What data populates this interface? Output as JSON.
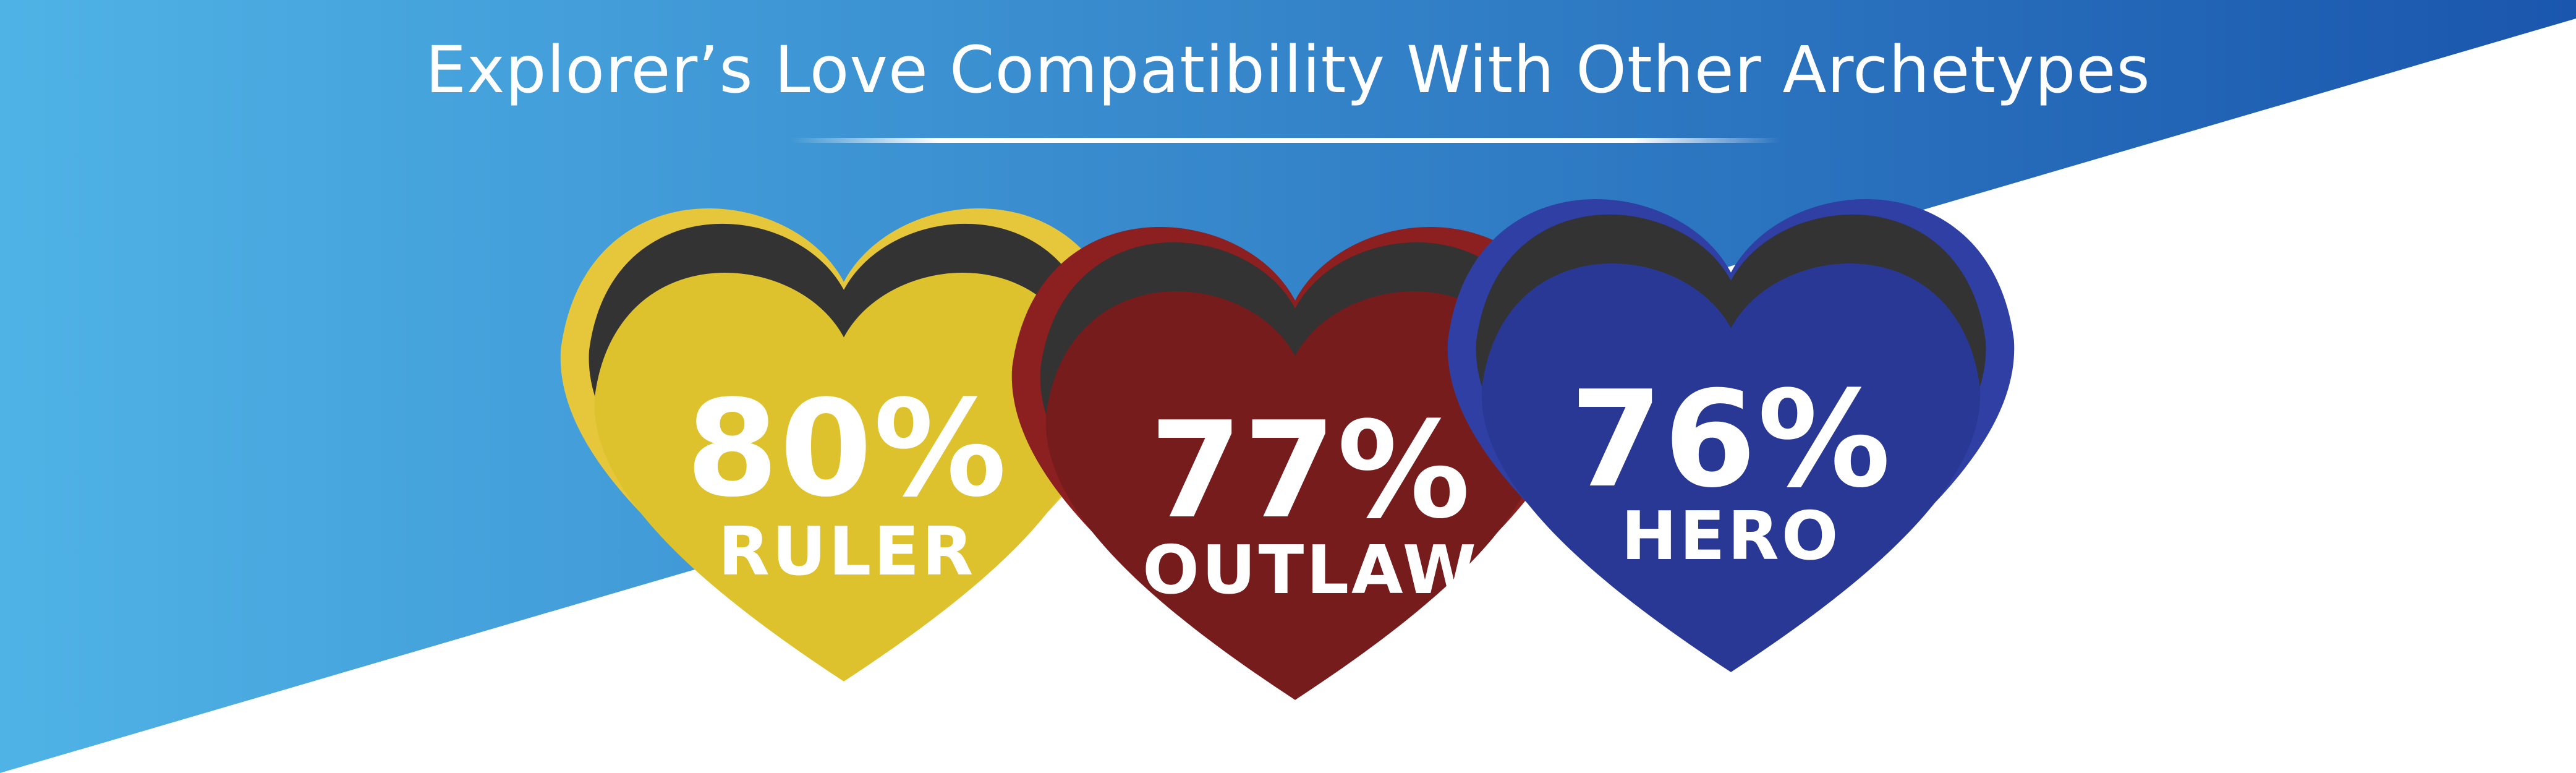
{
  "title": "Explorer’s Love Compatibility With Other Archetypes",
  "colors": {
    "gradient_start": "#4fb3e6",
    "gradient_end": "#1a56ad",
    "ruler_outer": "#e6c63a",
    "ruler_inner": "#ddc22e",
    "outlaw_outer": "#8c1f20",
    "outlaw_inner": "#761c1d",
    "hero_outer": "#2f3fa3",
    "hero_inner": "#283894",
    "shadow": "#333333"
  },
  "hearts": [
    {
      "archetype": "RULER",
      "percent_label": "80%",
      "percent_value": 80
    },
    {
      "archetype": "OUTLAW",
      "percent_label": "77%",
      "percent_value": 77
    },
    {
      "archetype": "HERO",
      "percent_label": "76%",
      "percent_value": 76
    }
  ]
}
